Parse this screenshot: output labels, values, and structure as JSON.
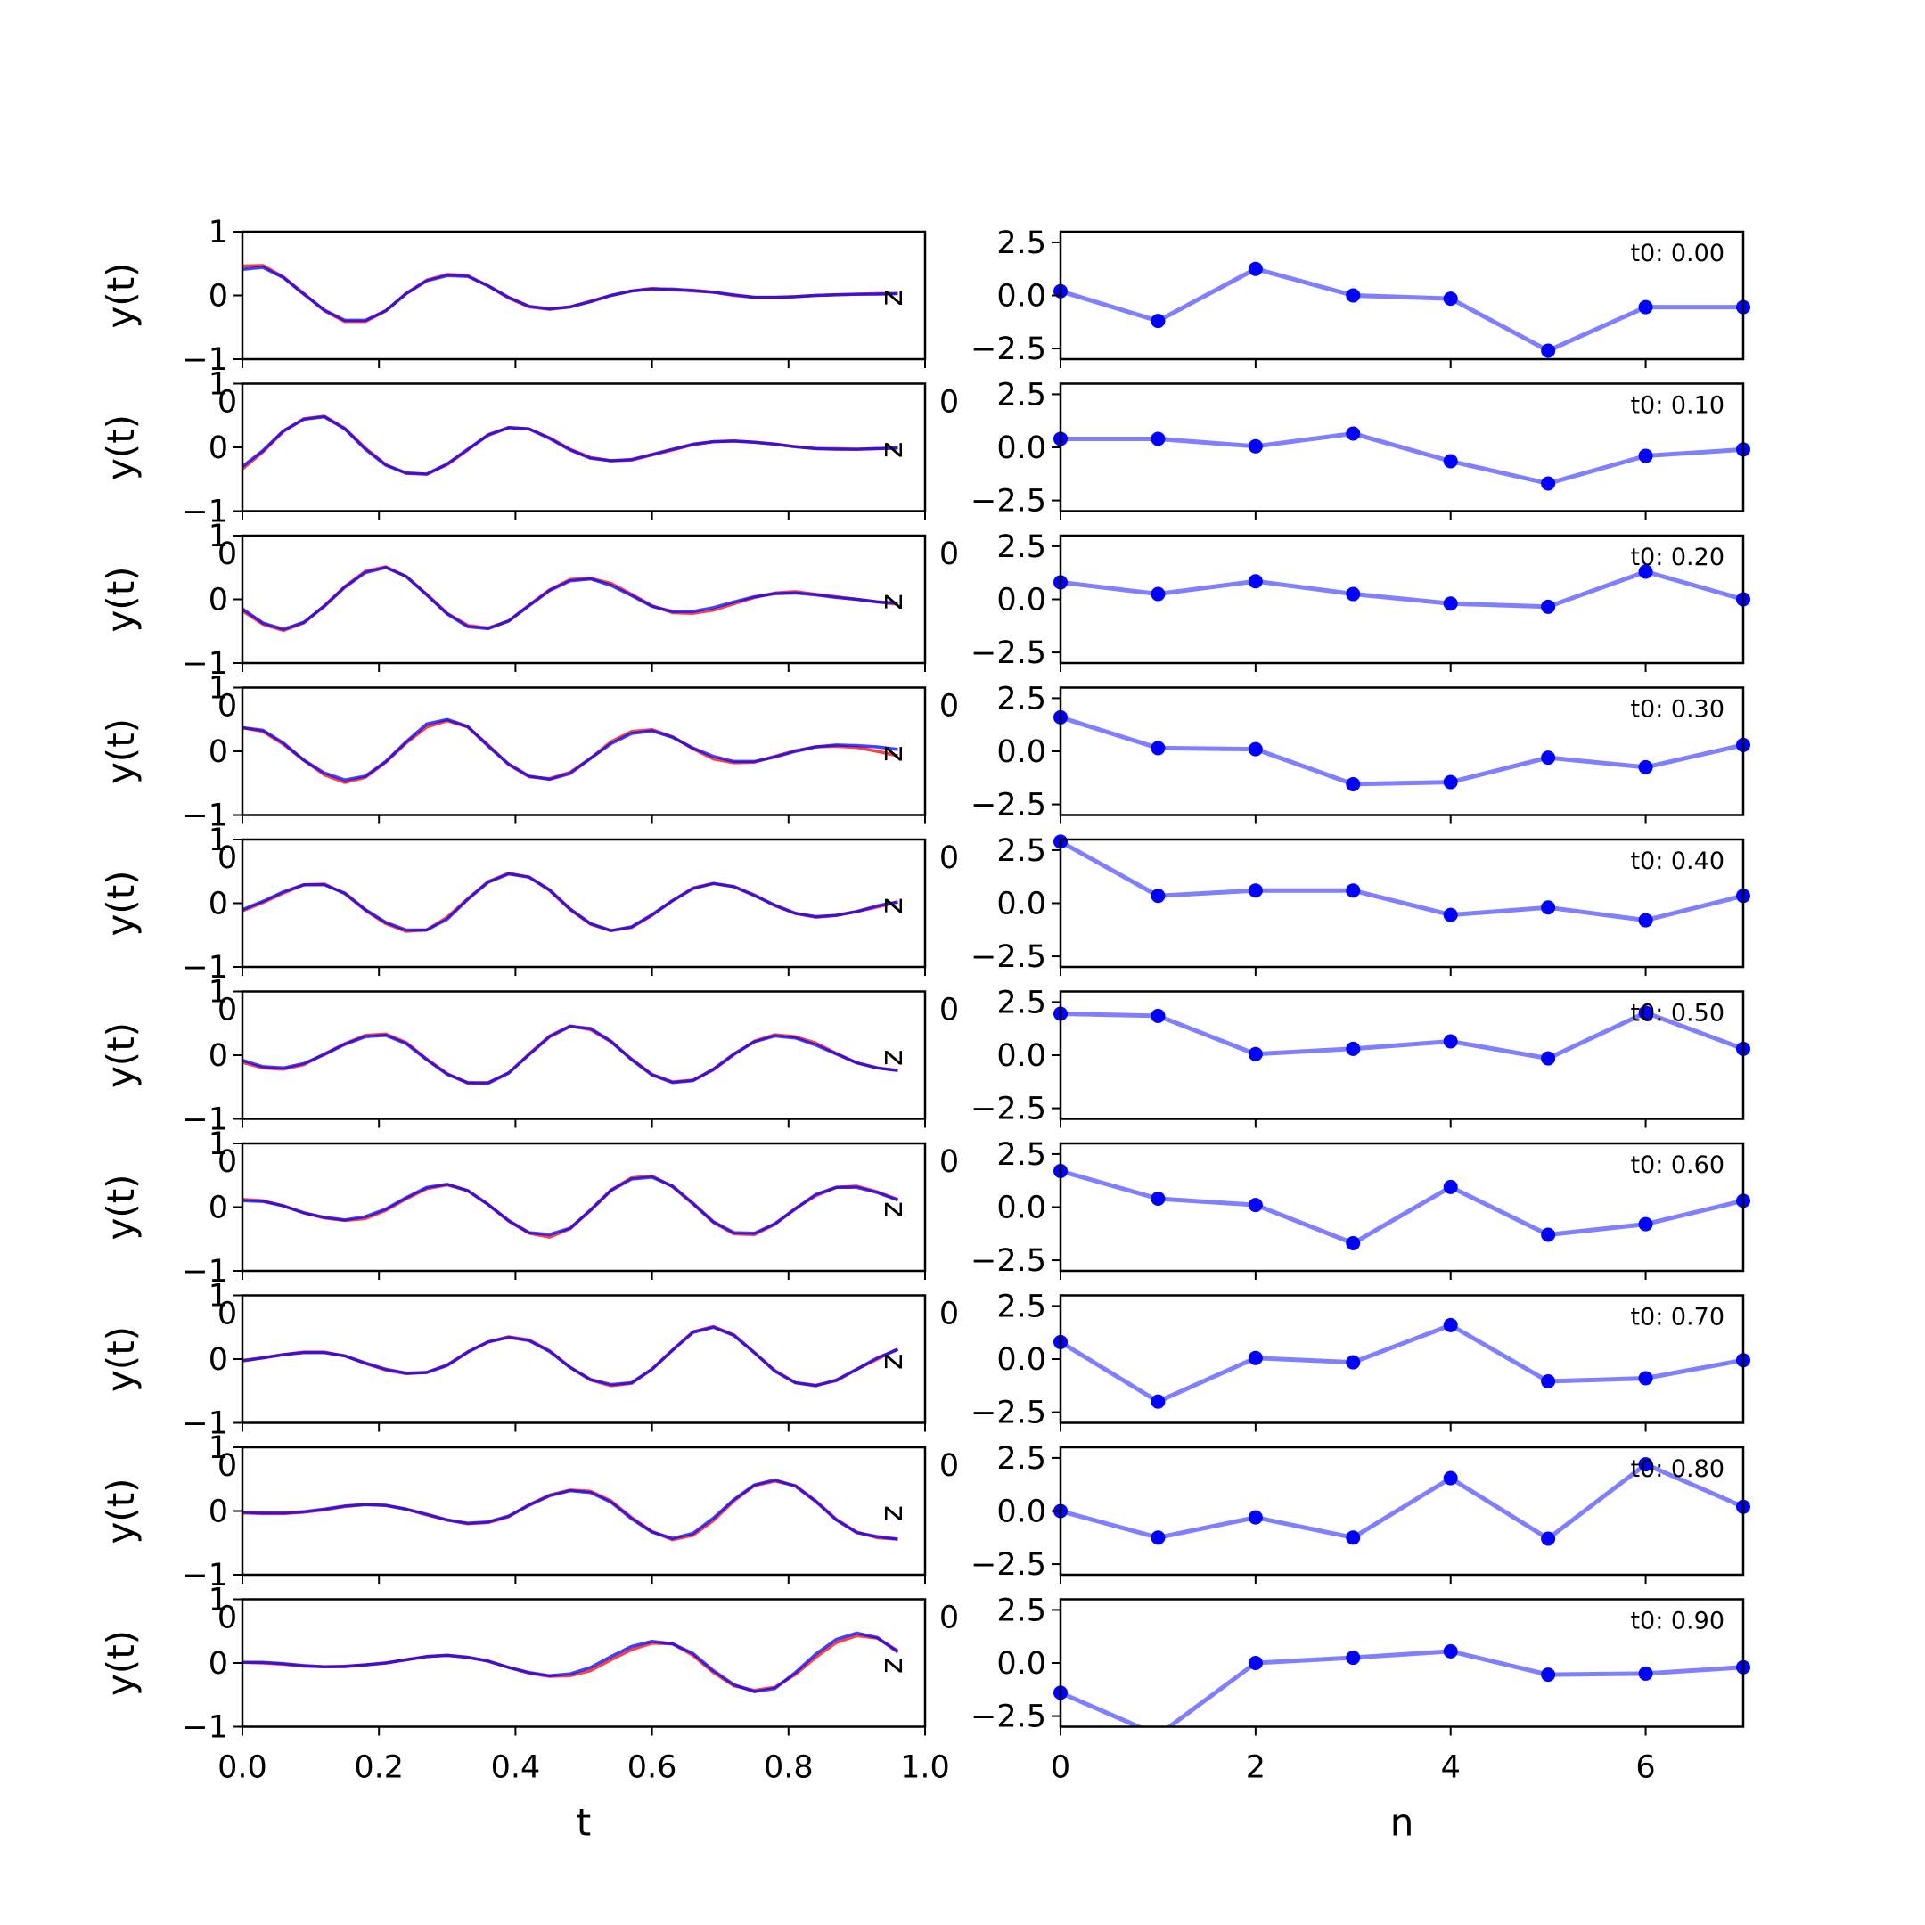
{
  "chart_data": [
    {
      "type": "line",
      "panel": "left",
      "xlabel": "t",
      "ylabel": "y(t)",
      "xlim": [
        0,
        1
      ],
      "ylim": [
        -1,
        1
      ],
      "xticks": [
        "0.0",
        "0.2",
        "0.4",
        "0.6",
        "0.8",
        "1.0"
      ],
      "yticks": [
        "1",
        "0",
        "−1"
      ],
      "overlap_tick_label": "0",
      "right_edge_label": "z",
      "series_colors": {
        "red": "#ff0000",
        "blue": "#0000ff"
      },
      "x": [
        0.0,
        0.03,
        0.06,
        0.09,
        0.12,
        0.15,
        0.18,
        0.21,
        0.24,
        0.27,
        0.3,
        0.33,
        0.36,
        0.39,
        0.42,
        0.45,
        0.48,
        0.51,
        0.54,
        0.57,
        0.6,
        0.63,
        0.66,
        0.69,
        0.72,
        0.75,
        0.78,
        0.81,
        0.84,
        0.87,
        0.9,
        0.93,
        0.96
      ],
      "rows": [
        {
          "red": [
            0.46,
            0.47,
            0.29,
            0.03,
            -0.24,
            -0.41,
            -0.41,
            -0.24,
            0.03,
            0.24,
            0.33,
            0.31,
            0.15,
            -0.04,
            -0.18,
            -0.22,
            -0.18,
            -0.09,
            0.0,
            0.07,
            0.11,
            0.09,
            0.07,
            0.05,
            0.0,
            -0.03,
            -0.03,
            -0.02,
            0.0,
            0.01,
            0.02,
            0.03,
            0.03
          ],
          "blue": [
            0.41,
            0.44,
            0.28,
            0.02,
            -0.23,
            -0.39,
            -0.39,
            -0.24,
            0.03,
            0.23,
            0.31,
            0.3,
            0.15,
            -0.03,
            -0.17,
            -0.21,
            -0.18,
            -0.1,
            0.0,
            0.07,
            0.1,
            0.1,
            0.08,
            0.05,
            0.01,
            -0.03,
            -0.03,
            -0.02,
            0.0,
            0.01,
            0.02,
            0.02,
            0.03
          ]
        },
        {
          "red": [
            -0.34,
            -0.07,
            0.25,
            0.45,
            0.49,
            0.3,
            -0.01,
            -0.27,
            -0.41,
            -0.42,
            -0.27,
            -0.04,
            0.2,
            0.31,
            0.29,
            0.15,
            -0.03,
            -0.16,
            -0.21,
            -0.2,
            -0.12,
            -0.04,
            0.04,
            0.09,
            0.1,
            0.08,
            0.05,
            0.01,
            -0.02,
            -0.02,
            -0.03,
            -0.02,
            -0.01
          ],
          "blue": [
            -0.3,
            -0.05,
            0.26,
            0.44,
            0.48,
            0.29,
            -0.03,
            -0.28,
            -0.4,
            -0.42,
            -0.26,
            -0.03,
            0.19,
            0.31,
            0.29,
            0.14,
            -0.04,
            -0.17,
            -0.21,
            -0.19,
            -0.11,
            -0.03,
            0.05,
            0.09,
            0.1,
            0.08,
            0.05,
            0.01,
            -0.02,
            -0.03,
            -0.03,
            -0.02,
            -0.01
          ]
        },
        {
          "red": [
            -0.18,
            -0.39,
            -0.49,
            -0.37,
            -0.1,
            0.2,
            0.44,
            0.51,
            0.36,
            0.08,
            -0.22,
            -0.41,
            -0.45,
            -0.34,
            -0.09,
            0.15,
            0.31,
            0.33,
            0.25,
            0.08,
            -0.1,
            -0.21,
            -0.22,
            -0.17,
            -0.07,
            0.03,
            0.1,
            0.12,
            0.08,
            0.04,
            0.0,
            -0.04,
            -0.08
          ],
          "blue": [
            -0.15,
            -0.37,
            -0.47,
            -0.36,
            -0.11,
            0.19,
            0.42,
            0.5,
            0.36,
            0.07,
            -0.23,
            -0.43,
            -0.46,
            -0.34,
            -0.1,
            0.14,
            0.29,
            0.32,
            0.22,
            0.06,
            -0.11,
            -0.19,
            -0.19,
            -0.13,
            -0.04,
            0.04,
            0.09,
            0.1,
            0.07,
            0.03,
            0.0,
            -0.04,
            -0.06
          ]
        },
        {
          "red": [
            0.37,
            0.31,
            0.11,
            -0.14,
            -0.37,
            -0.49,
            -0.41,
            -0.17,
            0.13,
            0.38,
            0.48,
            0.38,
            0.1,
            -0.21,
            -0.4,
            -0.43,
            -0.33,
            -0.11,
            0.15,
            0.31,
            0.34,
            0.23,
            0.04,
            -0.12,
            -0.18,
            -0.17,
            -0.08,
            0.01,
            0.07,
            0.08,
            0.06,
            0.0,
            -0.07
          ],
          "blue": [
            0.37,
            0.33,
            0.13,
            -0.14,
            -0.34,
            -0.45,
            -0.39,
            -0.16,
            0.15,
            0.43,
            0.5,
            0.39,
            0.08,
            -0.2,
            -0.39,
            -0.44,
            -0.35,
            -0.11,
            0.12,
            0.28,
            0.32,
            0.22,
            0.05,
            -0.08,
            -0.16,
            -0.16,
            -0.09,
            0.0,
            0.07,
            0.1,
            0.09,
            0.07,
            0.03
          ]
        },
        {
          "red": [
            -0.12,
            0.01,
            0.16,
            0.29,
            0.3,
            0.15,
            -0.11,
            -0.32,
            -0.44,
            -0.42,
            -0.22,
            0.07,
            0.34,
            0.47,
            0.41,
            0.2,
            -0.1,
            -0.33,
            -0.43,
            -0.38,
            -0.19,
            0.04,
            0.24,
            0.31,
            0.26,
            0.13,
            -0.04,
            -0.16,
            -0.22,
            -0.19,
            -0.13,
            -0.06,
            0.02
          ],
          "blue": [
            -0.1,
            0.03,
            0.18,
            0.29,
            0.29,
            0.16,
            -0.1,
            -0.3,
            -0.42,
            -0.42,
            -0.25,
            0.06,
            0.33,
            0.46,
            0.41,
            0.21,
            -0.09,
            -0.32,
            -0.43,
            -0.37,
            -0.18,
            0.04,
            0.23,
            0.31,
            0.26,
            0.12,
            -0.03,
            -0.16,
            -0.21,
            -0.19,
            -0.13,
            -0.04,
            0.02
          ]
        },
        {
          "red": [
            -0.11,
            -0.2,
            -0.22,
            -0.15,
            0.02,
            0.18,
            0.31,
            0.33,
            0.2,
            -0.06,
            -0.29,
            -0.44,
            -0.43,
            -0.28,
            0.02,
            0.3,
            0.46,
            0.4,
            0.21,
            -0.06,
            -0.3,
            -0.42,
            -0.39,
            -0.23,
            0.01,
            0.22,
            0.32,
            0.29,
            0.19,
            0.03,
            -0.12,
            -0.2,
            -0.24
          ],
          "blue": [
            -0.08,
            -0.18,
            -0.2,
            -0.13,
            0.01,
            0.17,
            0.29,
            0.31,
            0.18,
            -0.07,
            -0.3,
            -0.43,
            -0.44,
            -0.28,
            0.01,
            0.29,
            0.45,
            0.42,
            0.22,
            -0.07,
            -0.31,
            -0.43,
            -0.4,
            -0.22,
            0.02,
            0.21,
            0.3,
            0.27,
            0.16,
            0.02,
            -0.12,
            -0.2,
            -0.24
          ]
        },
        {
          "red": [
            0.12,
            0.1,
            0.02,
            -0.09,
            -0.17,
            -0.21,
            -0.18,
            -0.05,
            0.13,
            0.29,
            0.35,
            0.26,
            0.04,
            -0.22,
            -0.41,
            -0.47,
            -0.34,
            -0.04,
            0.27,
            0.46,
            0.49,
            0.32,
            0.05,
            -0.24,
            -0.42,
            -0.43,
            -0.27,
            -0.02,
            0.18,
            0.31,
            0.33,
            0.24,
            0.12
          ],
          "blue": [
            0.1,
            0.09,
            0.02,
            -0.09,
            -0.16,
            -0.2,
            -0.15,
            -0.03,
            0.15,
            0.31,
            0.36,
            0.26,
            0.04,
            -0.21,
            -0.4,
            -0.43,
            -0.33,
            -0.05,
            0.26,
            0.44,
            0.47,
            0.33,
            0.06,
            -0.23,
            -0.4,
            -0.41,
            -0.26,
            -0.03,
            0.2,
            0.31,
            0.31,
            0.23,
            0.11
          ]
        },
        {
          "red": [
            -0.02,
            0.02,
            0.07,
            0.11,
            0.11,
            0.05,
            -0.07,
            -0.17,
            -0.23,
            -0.21,
            -0.09,
            0.11,
            0.27,
            0.35,
            0.3,
            0.13,
            -0.13,
            -0.33,
            -0.42,
            -0.38,
            -0.16,
            0.14,
            0.43,
            0.51,
            0.38,
            0.1,
            -0.18,
            -0.37,
            -0.41,
            -0.34,
            -0.16,
            0.0,
            0.16
          ],
          "blue": [
            -0.03,
            0.02,
            0.07,
            0.1,
            0.1,
            0.05,
            -0.06,
            -0.16,
            -0.22,
            -0.21,
            -0.1,
            0.11,
            0.27,
            0.34,
            0.29,
            0.12,
            -0.13,
            -0.32,
            -0.4,
            -0.37,
            -0.16,
            0.14,
            0.42,
            0.5,
            0.37,
            0.1,
            -0.19,
            -0.37,
            -0.42,
            -0.33,
            -0.16,
            0.02,
            0.15
          ]
        },
        {
          "red": [
            -0.03,
            -0.04,
            -0.04,
            -0.02,
            0.02,
            0.07,
            0.1,
            0.09,
            0.03,
            -0.06,
            -0.14,
            -0.2,
            -0.18,
            -0.09,
            0.1,
            0.25,
            0.33,
            0.31,
            0.16,
            -0.1,
            -0.32,
            -0.45,
            -0.38,
            -0.15,
            0.16,
            0.4,
            0.47,
            0.4,
            0.16,
            -0.13,
            -0.33,
            -0.42,
            -0.44
          ],
          "blue": [
            -0.02,
            -0.03,
            -0.03,
            -0.01,
            0.03,
            0.08,
            0.1,
            0.09,
            0.03,
            -0.05,
            -0.14,
            -0.19,
            -0.17,
            -0.08,
            0.09,
            0.24,
            0.32,
            0.29,
            0.14,
            -0.12,
            -0.33,
            -0.43,
            -0.35,
            -0.11,
            0.18,
            0.41,
            0.49,
            0.39,
            0.15,
            -0.14,
            -0.34,
            -0.4,
            -0.44
          ]
        },
        {
          "red": [
            0.01,
            0.0,
            -0.02,
            -0.05,
            -0.06,
            -0.06,
            -0.03,
            0.0,
            0.05,
            0.1,
            0.12,
            0.09,
            0.03,
            -0.07,
            -0.16,
            -0.21,
            -0.2,
            -0.12,
            0.05,
            0.21,
            0.31,
            0.3,
            0.12,
            -0.15,
            -0.36,
            -0.43,
            -0.38,
            -0.18,
            0.09,
            0.32,
            0.43,
            0.39,
            0.19
          ],
          "blue": [
            0.01,
            0.01,
            -0.01,
            -0.04,
            -0.06,
            -0.05,
            -0.03,
            0.0,
            0.05,
            0.1,
            0.12,
            0.09,
            0.03,
            -0.07,
            -0.15,
            -0.2,
            -0.17,
            -0.07,
            0.1,
            0.26,
            0.34,
            0.3,
            0.15,
            -0.12,
            -0.34,
            -0.45,
            -0.4,
            -0.15,
            0.14,
            0.37,
            0.47,
            0.4,
            0.17
          ]
        }
      ]
    },
    {
      "type": "line",
      "panel": "right",
      "xlabel": "n",
      "ylabel": "",
      "xlim": [
        0,
        7
      ],
      "ylim": [
        -3,
        3
      ],
      "xticks": [
        "0",
        "2",
        "4",
        "6"
      ],
      "yticks": [
        "2.5",
        "0.0",
        "−2.5"
      ],
      "overlap_tick_label": "0",
      "line_color": "#0000ff",
      "x": [
        0,
        1,
        2,
        3,
        4,
        5,
        6,
        7
      ],
      "rows": [
        {
          "label": "t0: 0.00",
          "values": [
            0.2,
            -1.2,
            1.25,
            0.0,
            -0.15,
            -2.6,
            -0.55,
            -0.55
          ]
        },
        {
          "label": "t0: 0.10",
          "values": [
            0.4,
            0.4,
            0.05,
            0.65,
            -0.65,
            -1.7,
            -0.4,
            -0.1
          ]
        },
        {
          "label": "t0: 0.20",
          "values": [
            0.8,
            0.25,
            0.85,
            0.25,
            -0.2,
            -0.35,
            1.3,
            0.0
          ]
        },
        {
          "label": "t0: 0.30",
          "values": [
            1.6,
            0.15,
            0.1,
            -1.55,
            -1.45,
            -0.3,
            -0.75,
            0.3
          ]
        },
        {
          "label": "t0: 0.40",
          "values": [
            2.9,
            0.35,
            0.6,
            0.6,
            -0.55,
            -0.2,
            -0.8,
            0.35
          ]
        },
        {
          "label": "t0: 0.50",
          "values": [
            1.95,
            1.85,
            0.05,
            0.3,
            0.65,
            -0.15,
            2.0,
            0.3
          ]
        },
        {
          "label": "t0: 0.60",
          "values": [
            1.7,
            0.4,
            0.1,
            -1.7,
            0.95,
            -1.3,
            -0.8,
            0.3
          ]
        },
        {
          "label": "t0: 0.70",
          "values": [
            0.8,
            -2.0,
            0.05,
            -0.15,
            1.6,
            -1.05,
            -0.9,
            -0.05
          ]
        },
        {
          "label": "t0: 0.80",
          "values": [
            0.0,
            -1.25,
            -0.3,
            -1.25,
            1.55,
            -1.3,
            2.2,
            0.2
          ]
        },
        {
          "label": "t0: 0.90",
          "values": [
            -1.4,
            -3.4,
            0.0,
            0.25,
            0.55,
            -0.55,
            -0.5,
            -0.2
          ]
        }
      ]
    }
  ]
}
